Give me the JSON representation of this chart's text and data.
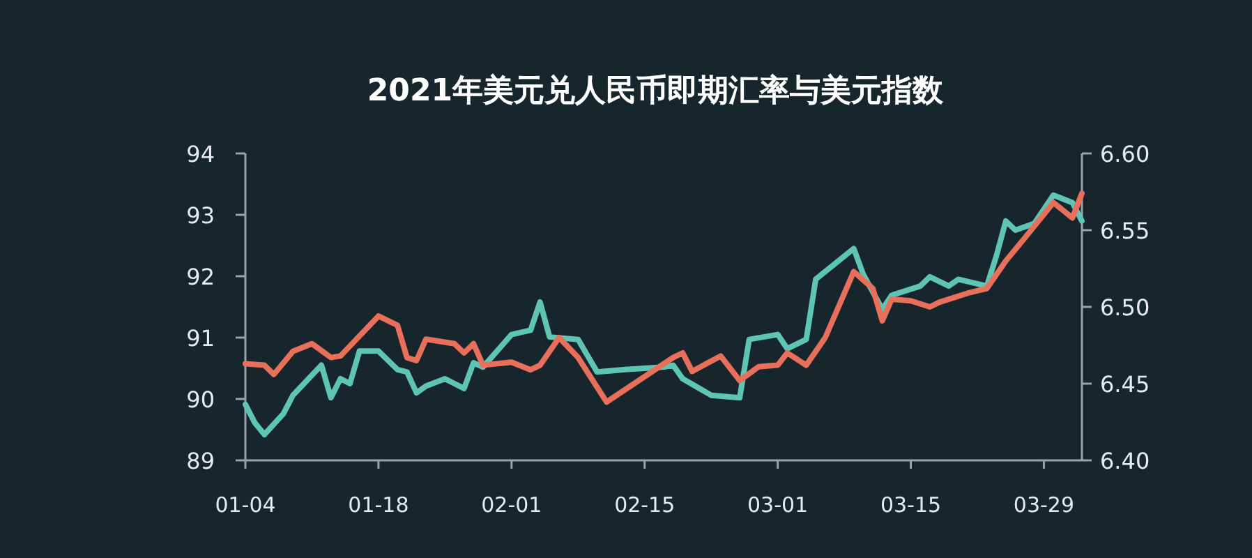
{
  "chart_data": {
    "type": "line",
    "title": "2021年美元兑人民币即期汇率与美元指数",
    "xlim": [
      "2021-01-04",
      "2021-04-02"
    ],
    "xticks": [
      {
        "value": "2021-01-04",
        "label": "01-04"
      },
      {
        "value": "2021-01-18",
        "label": "01-18"
      },
      {
        "value": "2021-02-01",
        "label": "02-01"
      },
      {
        "value": "2021-02-15",
        "label": "02-15"
      },
      {
        "value": "2021-03-01",
        "label": "03-01"
      },
      {
        "value": "2021-03-15",
        "label": "03-15"
      },
      {
        "value": "2021-03-29",
        "label": "03-29"
      }
    ],
    "ylim": [
      89,
      94
    ],
    "yticks": [
      89,
      90,
      91,
      92,
      93,
      94
    ],
    "y2lim": [
      6.4,
      6.6
    ],
    "y2ticks": [
      {
        "value": 6.4,
        "label": "6.40"
      },
      {
        "value": 6.45,
        "label": "6.45"
      },
      {
        "value": 6.5,
        "label": "6.50"
      },
      {
        "value": 6.55,
        "label": "6.55"
      },
      {
        "value": 6.6,
        "label": "6.60"
      }
    ],
    "grid": false,
    "series": [
      {
        "color": "#5ec4b4",
        "x": [
          "2021-01-04",
          "2021-01-05",
          "2021-01-06",
          "2021-01-08",
          "2021-01-09",
          "2021-01-12",
          "2021-01-13",
          "2021-01-14",
          "2021-01-15",
          "2021-01-16",
          "2021-01-18",
          "2021-01-20",
          "2021-01-21",
          "2021-01-22",
          "2021-01-23",
          "2021-01-25",
          "2021-01-27",
          "2021-01-28",
          "2021-01-29",
          "2021-02-01",
          "2021-02-03",
          "2021-02-04",
          "2021-02-05",
          "2021-02-08",
          "2021-02-10",
          "2021-02-13",
          "2021-02-17",
          "2021-02-18",
          "2021-02-19",
          "2021-02-22",
          "2021-02-25",
          "2021-02-26",
          "2021-03-01",
          "2021-03-02",
          "2021-03-04",
          "2021-03-05",
          "2021-03-09",
          "2021-03-10",
          "2021-03-12",
          "2021-03-13",
          "2021-03-16",
          "2021-03-17",
          "2021-03-19",
          "2021-03-20",
          "2021-03-23",
          "2021-03-24",
          "2021-03-25",
          "2021-03-26",
          "2021-03-28",
          "2021-03-30",
          "2021-04-01",
          "2021-04-02"
        ],
        "values": [
          89.91,
          89.61,
          89.42,
          89.76,
          90.06,
          90.55,
          90.02,
          90.33,
          90.25,
          90.78,
          90.78,
          90.48,
          90.44,
          90.1,
          90.21,
          90.33,
          90.17,
          90.59,
          90.52,
          91.05,
          91.12,
          91.58,
          91.01,
          90.97,
          90.44,
          90.48,
          90.52,
          90.55,
          90.33,
          90.06,
          90.02,
          90.97,
          91.05,
          90.82,
          90.97,
          91.95,
          92.45,
          92.03,
          91.46,
          91.69,
          91.84,
          91.99,
          91.84,
          91.95,
          91.84,
          92.33,
          92.9,
          92.75,
          92.86,
          93.32,
          93.2,
          92.9
        ]
      },
      {
        "color": "#e8705a",
        "axis": "y2",
        "x": [
          "2021-01-04",
          "2021-01-06",
          "2021-01-07",
          "2021-01-09",
          "2021-01-11",
          "2021-01-13",
          "2021-01-14",
          "2021-01-18",
          "2021-01-20",
          "2021-01-21",
          "2021-01-22",
          "2021-01-23",
          "2021-01-26",
          "2021-01-27",
          "2021-01-28",
          "2021-01-29",
          "2021-02-01",
          "2021-02-03",
          "2021-02-04",
          "2021-02-06",
          "2021-02-08",
          "2021-02-11",
          "2021-02-18",
          "2021-02-19",
          "2021-02-20",
          "2021-02-23",
          "2021-02-25",
          "2021-02-27",
          "2021-03-01",
          "2021-03-02",
          "2021-03-04",
          "2021-03-06",
          "2021-03-09",
          "2021-03-11",
          "2021-03-12",
          "2021-03-13",
          "2021-03-15",
          "2021-03-17",
          "2021-03-18",
          "2021-03-21",
          "2021-03-23",
          "2021-03-25",
          "2021-03-27",
          "2021-03-30",
          "2021-04-01",
          "2021-04-02"
        ],
        "values": [
          6.463,
          6.462,
          6.456,
          6.471,
          6.476,
          6.467,
          6.468,
          6.494,
          6.488,
          6.467,
          6.465,
          6.479,
          6.476,
          6.47,
          6.476,
          6.462,
          6.464,
          6.459,
          6.462,
          6.48,
          6.467,
          6.438,
          6.467,
          6.47,
          6.458,
          6.468,
          6.452,
          6.461,
          6.462,
          6.47,
          6.462,
          6.48,
          6.523,
          6.512,
          6.491,
          6.505,
          6.504,
          6.5,
          6.503,
          6.509,
          6.512,
          6.53,
          6.545,
          6.568,
          6.558,
          6.574
        ]
      }
    ]
  }
}
